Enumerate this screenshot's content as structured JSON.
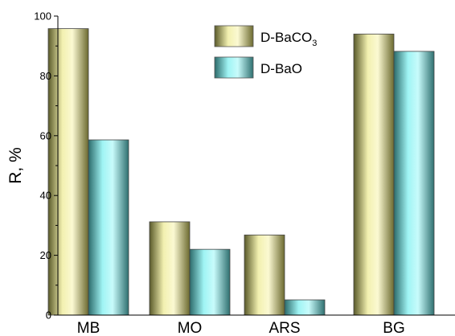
{
  "chart_data": {
    "type": "bar",
    "categories": [
      "MB",
      "MO",
      "ARS",
      "BG"
    ],
    "series": [
      {
        "name": "D-BaCO3",
        "name_main": "D-BaCO",
        "name_sub": "3",
        "values": [
          95.8,
          31.2,
          26.8,
          94.0
        ],
        "color": "#e6e39a"
      },
      {
        "name": "D-BaO",
        "values": [
          58.6,
          22.0,
          5.1,
          88.2
        ],
        "color": "#8ae6e6"
      }
    ],
    "ylabel": "R, %",
    "xlabel": "",
    "title": "",
    "ylim": [
      0,
      100
    ],
    "yticks": [
      0,
      20,
      40,
      60,
      80,
      100
    ],
    "yticks_text": [
      "0",
      "20",
      "40",
      "60",
      "80",
      "100"
    ],
    "grid": false,
    "legend_position": "top-center"
  }
}
